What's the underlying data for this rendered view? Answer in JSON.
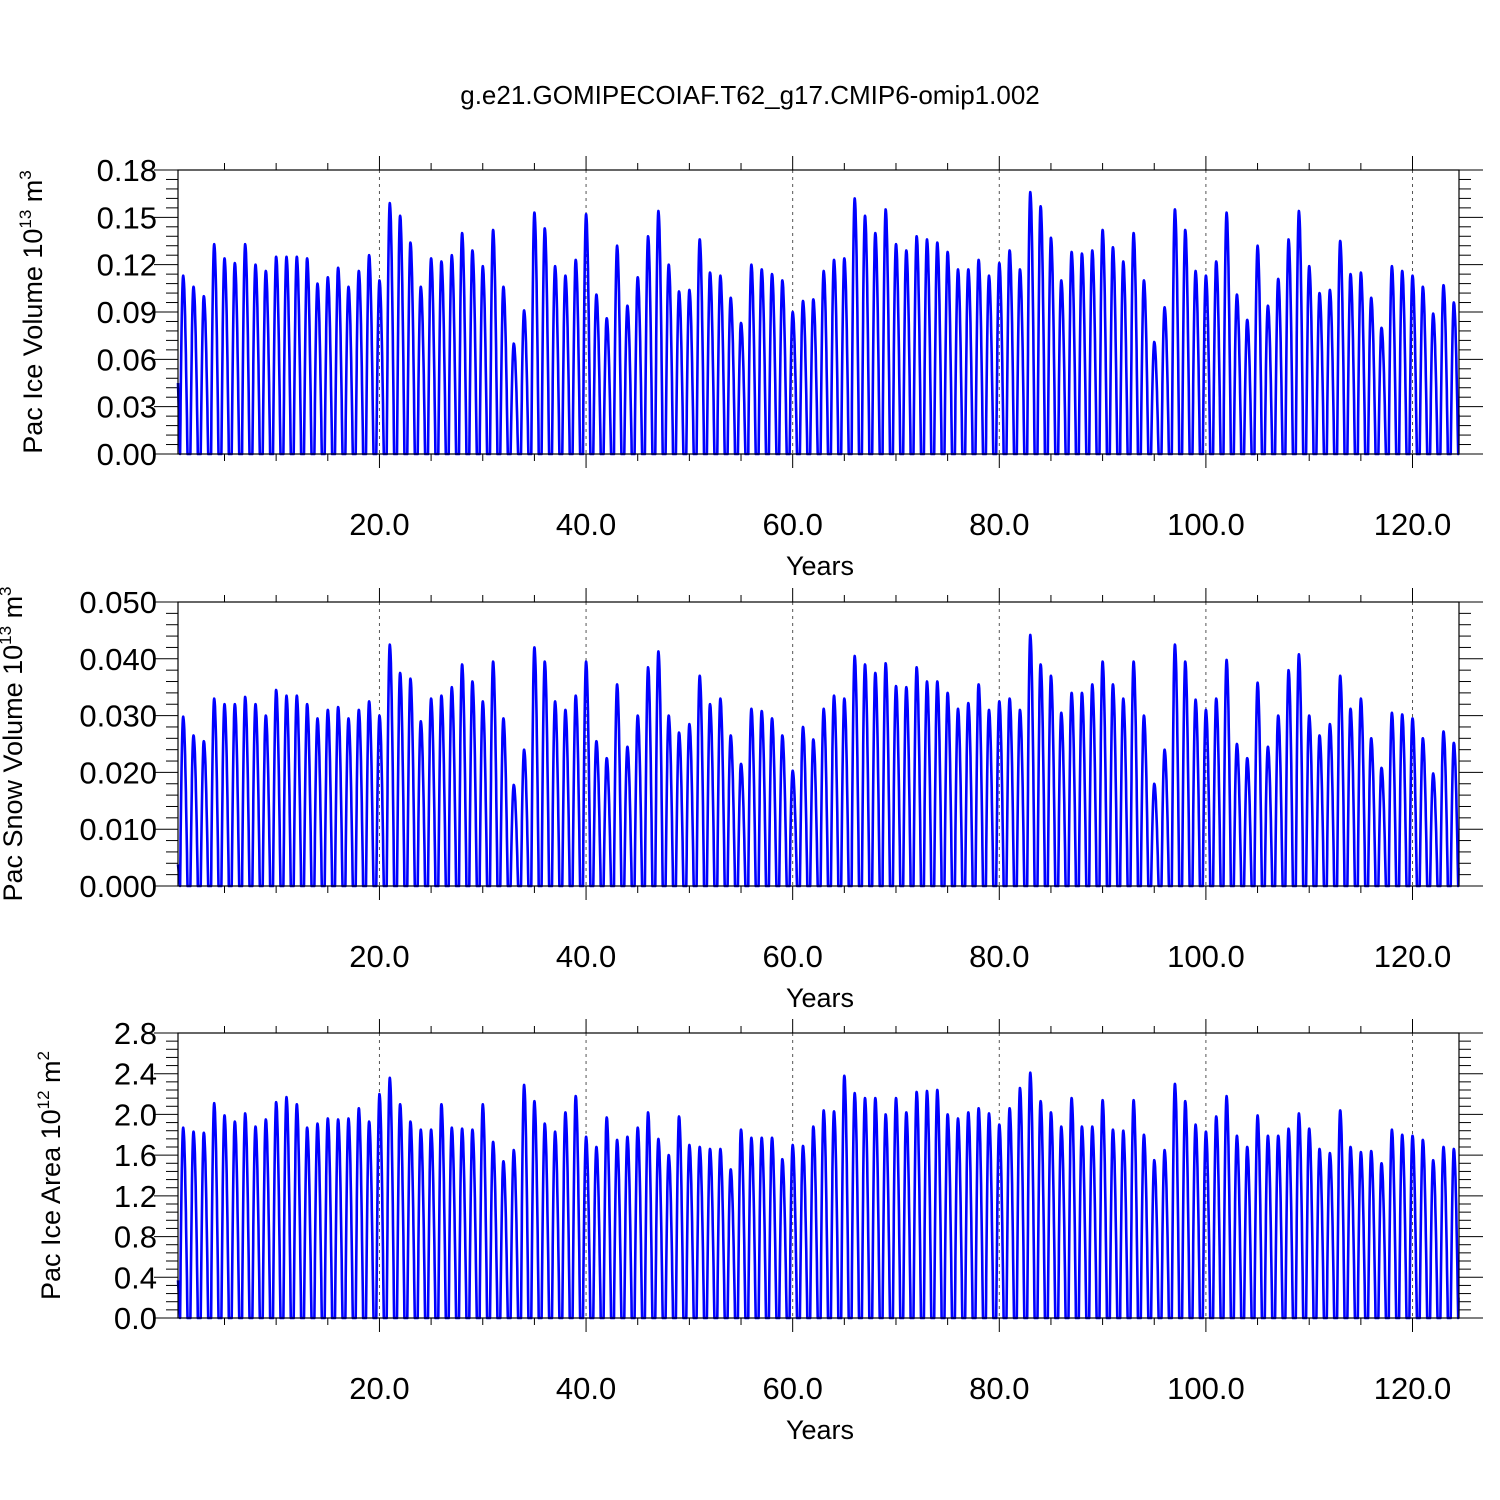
{
  "figure": {
    "title": "g.e21.GOMIPECOIAF.T62_g17.CMIP6-omip1.002"
  },
  "chart_data": [
    {
      "type": "line",
      "ylabel_main": "Pac Ice Volume 10",
      "ylabel_exp": "13",
      "ylabel_unit": " m",
      "ylabel_unit_exp": "3",
      "xlabel": "Years",
      "xlim": [
        0.5,
        124.5
      ],
      "ylim": [
        0,
        0.18
      ],
      "yticks": [
        0.0,
        0.03,
        0.06,
        0.09,
        0.12,
        0.15,
        0.18
      ],
      "ytick_labels": [
        "0.00",
        "0.03",
        "0.06",
        "0.09",
        "0.12",
        "0.15",
        "0.18"
      ],
      "xticks": [
        20,
        40,
        60,
        80,
        100,
        120
      ],
      "xtick_labels": [
        "20.0",
        "40.0",
        "60.0",
        "80.0",
        "100.0",
        "120.0"
      ],
      "grid": "vertical dashed at major x ticks",
      "series": [
        {
          "color": "#0000ff",
          "peak_years": [
            1,
            2,
            3,
            4,
            5,
            6,
            7,
            8,
            9,
            10,
            11,
            12,
            13,
            14,
            15,
            16,
            17,
            18,
            19,
            20,
            21,
            22,
            23,
            24,
            25,
            26,
            27,
            28,
            29,
            30,
            31,
            32,
            33,
            34,
            35,
            36,
            37,
            38,
            39,
            40,
            41,
            42,
            43,
            44,
            45,
            46,
            47,
            48,
            49,
            50,
            51,
            52,
            53,
            54,
            55,
            56,
            57,
            58,
            59,
            60,
            61,
            62,
            63,
            64,
            65,
            66,
            67,
            68,
            69,
            70,
            71,
            72,
            73,
            74,
            75,
            76,
            77,
            78,
            79,
            80,
            81,
            82,
            83,
            84,
            85,
            86,
            87,
            88,
            89,
            90,
            91,
            92,
            93,
            94,
            95,
            96,
            97,
            98,
            99,
            100,
            101,
            102,
            103,
            104,
            105,
            106,
            107,
            108,
            109,
            110,
            111,
            112,
            113,
            114,
            115,
            116,
            117,
            118,
            119,
            120,
            121,
            122,
            123,
            124
          ],
          "annual_max": [
            0.113,
            0.106,
            0.1,
            0.133,
            0.124,
            0.121,
            0.133,
            0.12,
            0.116,
            0.125,
            0.125,
            0.125,
            0.124,
            0.108,
            0.112,
            0.118,
            0.106,
            0.116,
            0.126,
            0.11,
            0.159,
            0.151,
            0.134,
            0.106,
            0.124,
            0.122,
            0.126,
            0.14,
            0.129,
            0.119,
            0.142,
            0.106,
            0.07,
            0.091,
            0.153,
            0.143,
            0.119,
            0.113,
            0.123,
            0.152,
            0.101,
            0.086,
            0.132,
            0.094,
            0.112,
            0.138,
            0.154,
            0.12,
            0.103,
            0.104,
            0.136,
            0.115,
            0.113,
            0.099,
            0.083,
            0.12,
            0.117,
            0.114,
            0.11,
            0.09,
            0.097,
            0.098,
            0.116,
            0.123,
            0.124,
            0.162,
            0.151,
            0.14,
            0.155,
            0.133,
            0.129,
            0.138,
            0.136,
            0.134,
            0.128,
            0.117,
            0.117,
            0.123,
            0.113,
            0.121,
            0.129,
            0.117,
            0.166,
            0.157,
            0.137,
            0.11,
            0.128,
            0.127,
            0.129,
            0.142,
            0.131,
            0.122,
            0.14,
            0.11,
            0.071,
            0.093,
            0.155,
            0.142,
            0.116,
            0.113,
            0.122,
            0.153,
            0.101,
            0.085,
            0.132,
            0.094,
            0.111,
            0.136,
            0.154,
            0.119,
            0.102,
            0.104,
            0.135,
            0.114,
            0.115,
            0.099,
            0.08,
            0.119,
            0.116,
            0.113,
            0.106,
            0.089,
            0.107,
            0.096
          ],
          "annual_min": 0.0,
          "start_value": 0.045,
          "end_value": 0.025
        }
      ]
    },
    {
      "type": "line",
      "ylabel_main": "Pac Snow Volume 10",
      "ylabel_exp": "13",
      "ylabel_unit": " m",
      "ylabel_unit_exp": "3",
      "xlabel": "Years",
      "xlim": [
        0.5,
        124.5
      ],
      "ylim": [
        0,
        0.05
      ],
      "yticks": [
        0.0,
        0.01,
        0.02,
        0.03,
        0.04,
        0.05
      ],
      "ytick_labels": [
        "0.000",
        "0.010",
        "0.020",
        "0.030",
        "0.040",
        "0.050"
      ],
      "xticks": [
        20,
        40,
        60,
        80,
        100,
        120
      ],
      "xtick_labels": [
        "20.0",
        "40.0",
        "60.0",
        "80.0",
        "100.0",
        "120.0"
      ],
      "grid": "vertical dashed at major x ticks",
      "series": [
        {
          "color": "#0000ff",
          "peak_years": [
            1,
            2,
            3,
            4,
            5,
            6,
            7,
            8,
            9,
            10,
            11,
            12,
            13,
            14,
            15,
            16,
            17,
            18,
            19,
            20,
            21,
            22,
            23,
            24,
            25,
            26,
            27,
            28,
            29,
            30,
            31,
            32,
            33,
            34,
            35,
            36,
            37,
            38,
            39,
            40,
            41,
            42,
            43,
            44,
            45,
            46,
            47,
            48,
            49,
            50,
            51,
            52,
            53,
            54,
            55,
            56,
            57,
            58,
            59,
            60,
            61,
            62,
            63,
            64,
            65,
            66,
            67,
            68,
            69,
            70,
            71,
            72,
            73,
            74,
            75,
            76,
            77,
            78,
            79,
            80,
            81,
            82,
            83,
            84,
            85,
            86,
            87,
            88,
            89,
            90,
            91,
            92,
            93,
            94,
            95,
            96,
            97,
            98,
            99,
            100,
            101,
            102,
            103,
            104,
            105,
            106,
            107,
            108,
            109,
            110,
            111,
            112,
            113,
            114,
            115,
            116,
            117,
            118,
            119,
            120,
            121,
            122,
            123,
            124
          ],
          "annual_max": [
            0.0298,
            0.0265,
            0.0255,
            0.033,
            0.032,
            0.032,
            0.0333,
            0.032,
            0.03,
            0.0345,
            0.0335,
            0.0335,
            0.032,
            0.0295,
            0.031,
            0.0315,
            0.0295,
            0.031,
            0.0325,
            0.03,
            0.0425,
            0.0375,
            0.0365,
            0.029,
            0.033,
            0.0335,
            0.035,
            0.039,
            0.036,
            0.0325,
            0.0395,
            0.0295,
            0.0178,
            0.024,
            0.042,
            0.0395,
            0.0325,
            0.031,
            0.0335,
            0.0395,
            0.0255,
            0.0225,
            0.0355,
            0.0245,
            0.03,
            0.0385,
            0.0413,
            0.03,
            0.027,
            0.0285,
            0.037,
            0.032,
            0.033,
            0.0265,
            0.0215,
            0.0312,
            0.0308,
            0.0295,
            0.0265,
            0.0203,
            0.028,
            0.0258,
            0.0312,
            0.0335,
            0.033,
            0.0405,
            0.039,
            0.0375,
            0.0392,
            0.0352,
            0.035,
            0.0385,
            0.036,
            0.036,
            0.034,
            0.0312,
            0.0322,
            0.0355,
            0.031,
            0.0325,
            0.033,
            0.031,
            0.0442,
            0.039,
            0.037,
            0.0305,
            0.034,
            0.034,
            0.0355,
            0.0395,
            0.0355,
            0.033,
            0.0395,
            0.03,
            0.018,
            0.024,
            0.0425,
            0.0395,
            0.0328,
            0.031,
            0.033,
            0.0398,
            0.025,
            0.0225,
            0.0358,
            0.0245,
            0.03,
            0.038,
            0.0408,
            0.03,
            0.0265,
            0.0285,
            0.037,
            0.0312,
            0.033,
            0.026,
            0.0208,
            0.0305,
            0.0302,
            0.0295,
            0.026,
            0.0198,
            0.0272,
            0.0252
          ],
          "annual_min": 0.0,
          "start_value": 0.0038,
          "end_value": 0.0032
        }
      ]
    },
    {
      "type": "line",
      "ylabel_main": "Pac Ice Area 10",
      "ylabel_exp": "12",
      "ylabel_unit": " m",
      "ylabel_unit_exp": "2",
      "xlabel": "Years",
      "xlim": [
        0.5,
        124.5
      ],
      "ylim": [
        0,
        2.8
      ],
      "yticks": [
        0.0,
        0.4,
        0.8,
        1.2,
        1.6,
        2.0,
        2.4,
        2.8
      ],
      "ytick_labels": [
        "0.0",
        "0.4",
        "0.8",
        "1.2",
        "1.6",
        "2.0",
        "2.4",
        "2.8"
      ],
      "xticks": [
        20,
        40,
        60,
        80,
        100,
        120
      ],
      "xtick_labels": [
        "20.0",
        "40.0",
        "60.0",
        "80.0",
        "100.0",
        "120.0"
      ],
      "grid": "vertical dashed at major x ticks",
      "series": [
        {
          "color": "#0000ff",
          "peak_years": [
            1,
            2,
            3,
            4,
            5,
            6,
            7,
            8,
            9,
            10,
            11,
            12,
            13,
            14,
            15,
            16,
            17,
            18,
            19,
            20,
            21,
            22,
            23,
            24,
            25,
            26,
            27,
            28,
            29,
            30,
            31,
            32,
            33,
            34,
            35,
            36,
            37,
            38,
            39,
            40,
            41,
            42,
            43,
            44,
            45,
            46,
            47,
            48,
            49,
            50,
            51,
            52,
            53,
            54,
            55,
            56,
            57,
            58,
            59,
            60,
            61,
            62,
            63,
            64,
            65,
            66,
            67,
            68,
            69,
            70,
            71,
            72,
            73,
            74,
            75,
            76,
            77,
            78,
            79,
            80,
            81,
            82,
            83,
            84,
            85,
            86,
            87,
            88,
            89,
            90,
            91,
            92,
            93,
            94,
            95,
            96,
            97,
            98,
            99,
            100,
            101,
            102,
            103,
            104,
            105,
            106,
            107,
            108,
            109,
            110,
            111,
            112,
            113,
            114,
            115,
            116,
            117,
            118,
            119,
            120,
            121,
            122,
            123,
            124
          ],
          "annual_max": [
            1.87,
            1.83,
            1.82,
            2.11,
            1.99,
            1.93,
            2.01,
            1.88,
            1.95,
            2.12,
            2.17,
            2.1,
            1.87,
            1.91,
            1.96,
            1.95,
            1.96,
            2.06,
            1.93,
            2.2,
            2.36,
            2.1,
            1.93,
            1.85,
            1.85,
            2.1,
            1.87,
            1.86,
            1.85,
            2.1,
            1.73,
            1.54,
            1.65,
            2.29,
            2.13,
            1.91,
            1.83,
            2.02,
            2.18,
            1.78,
            1.68,
            1.97,
            1.75,
            1.78,
            1.87,
            2.02,
            1.76,
            1.6,
            1.98,
            1.7,
            1.68,
            1.66,
            1.66,
            1.46,
            1.85,
            1.77,
            1.77,
            1.77,
            1.56,
            1.7,
            1.69,
            1.88,
            2.04,
            2.03,
            2.38,
            2.21,
            2.16,
            2.16,
            2.0,
            2.16,
            2.02,
            2.22,
            2.23,
            2.24,
            2.0,
            1.96,
            2.02,
            2.06,
            2.01,
            1.9,
            2.06,
            2.26,
            2.41,
            2.13,
            2.02,
            1.88,
            2.16,
            1.88,
            1.88,
            2.14,
            1.85,
            1.84,
            2.14,
            1.8,
            1.55,
            1.65,
            2.3,
            2.13,
            1.9,
            1.83,
            1.98,
            2.18,
            1.79,
            1.68,
            1.99,
            1.79,
            1.79,
            1.86,
            2.01,
            1.86,
            1.66,
            1.62,
            2.04,
            1.68,
            1.63,
            1.64,
            1.52,
            1.85,
            1.8,
            1.79,
            1.75,
            1.55,
            1.68,
            1.66
          ],
          "annual_min": 0.0,
          "start_value": 0.37,
          "end_value": 0.2
        }
      ]
    }
  ]
}
